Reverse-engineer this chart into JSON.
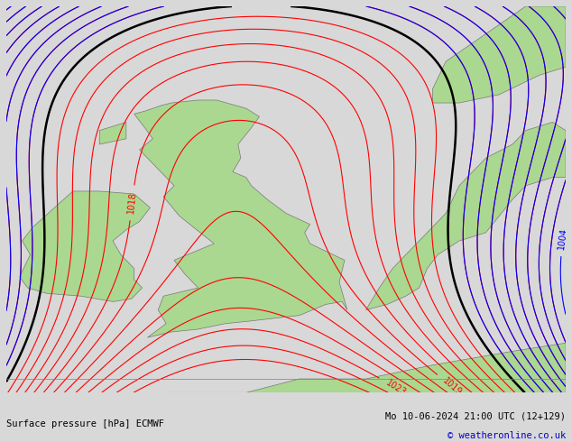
{
  "title_left": "Surface pressure [hPa] ECMWF",
  "title_right": "Mo 10-06-2024 21:00 UTC (12+129)",
  "copyright": "© weatheronline.co.uk",
  "background_color": "#d8d8d8",
  "land_color": "#aad890",
  "border_color": "#888888",
  "text_color_dark": "#000000",
  "text_color_blue": "#0000cc",
  "fig_width": 6.34,
  "fig_height": 4.9,
  "dpi": 100,
  "xlim": [
    -11,
    10
  ],
  "ylim": [
    48,
    62
  ]
}
